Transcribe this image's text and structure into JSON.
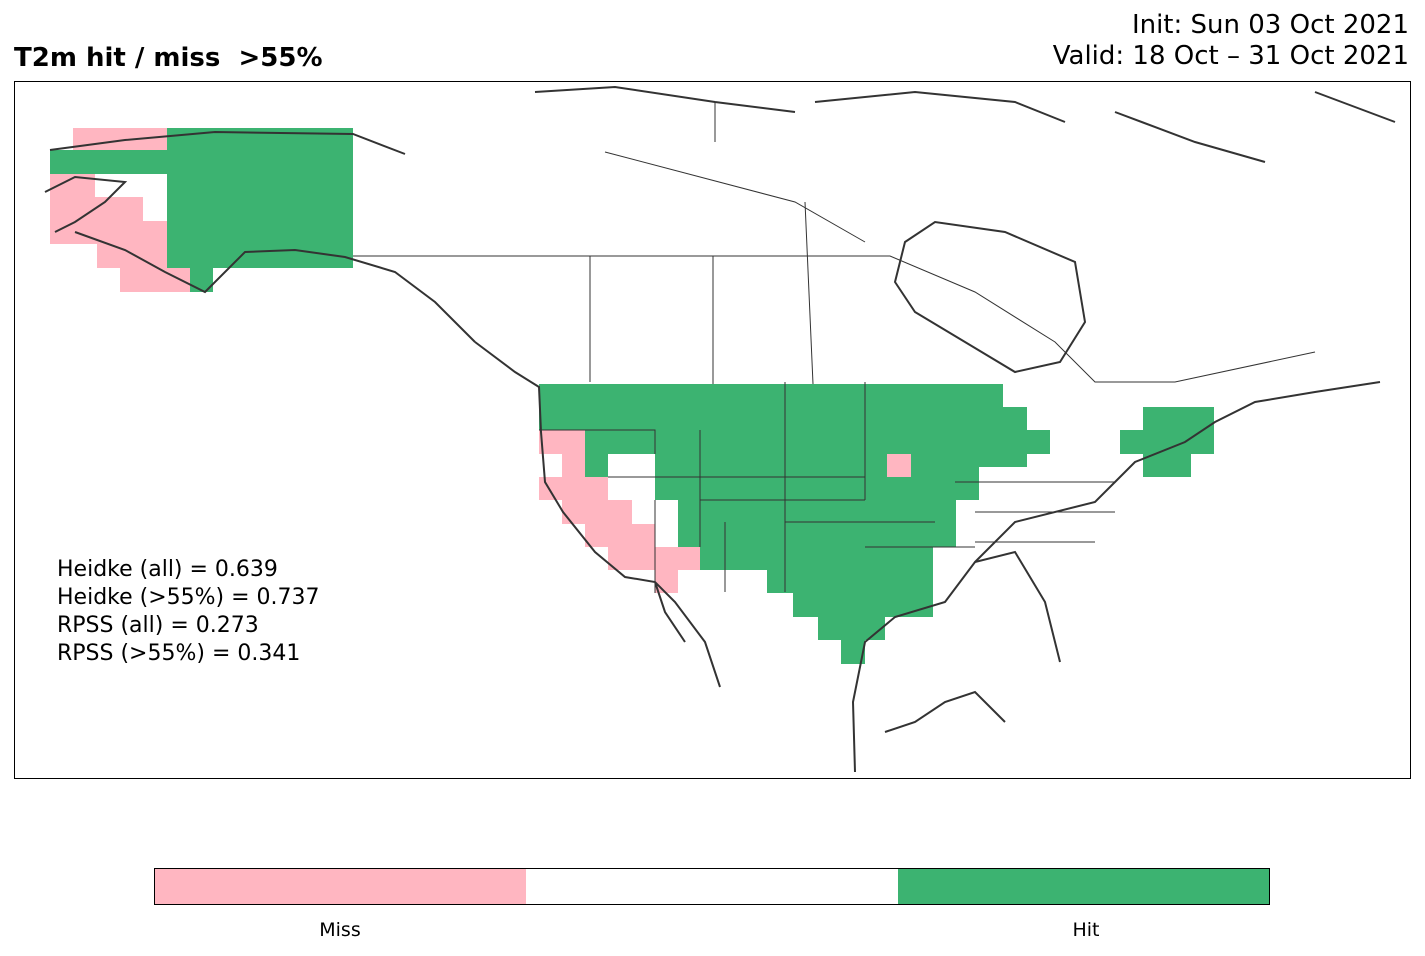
{
  "title": {
    "left": "T2m hit / miss  >55%",
    "init": "Init: Sun 03 Oct 2021",
    "valid": "Valid: 18 Oct – 31 Oct 2021"
  },
  "scores": [
    "Heidke (all) = 0.639",
    "Heidke (>55%) = 0.737",
    "RPSS (all) = 0.273",
    "RPSS (>55%) = 0.341"
  ],
  "colorbar": {
    "segments": [
      {
        "label": "Miss",
        "color": "#ffb6c1"
      },
      {
        "label": "",
        "color": "#ffffff"
      },
      {
        "label": "Hit",
        "color": "#3cb371"
      }
    ]
  },
  "colors": {
    "hit": "#3cb371",
    "miss": "#ffb6c1",
    "coast": "#333333"
  }
}
